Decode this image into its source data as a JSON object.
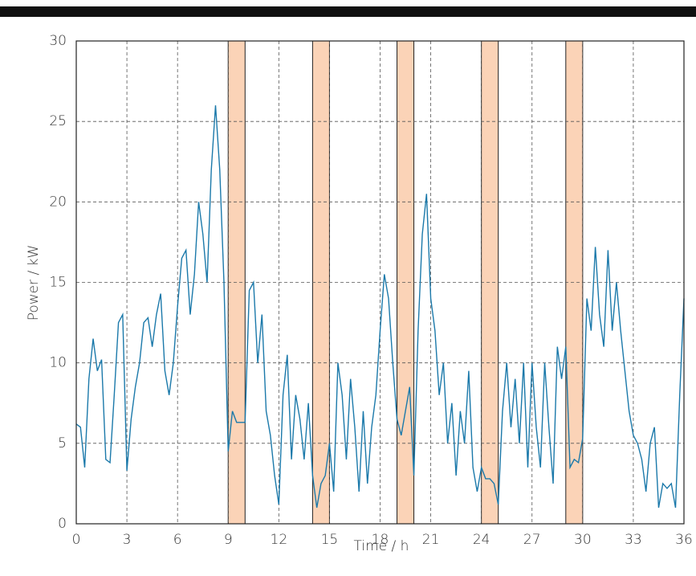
{
  "chart_data": {
    "type": "line",
    "xlabel": "Time  / h",
    "ylabel": "Power / kW",
    "xlim": [
      0,
      36
    ],
    "ylim": [
      0,
      30
    ],
    "xticks": [
      0,
      3,
      6,
      9,
      12,
      15,
      18,
      21,
      24,
      27,
      30,
      33,
      36
    ],
    "yticks": [
      0,
      5,
      10,
      15,
      20,
      25,
      30
    ],
    "grid": true,
    "shaded_regions": [
      [
        9,
        10
      ],
      [
        14,
        15
      ],
      [
        19,
        20
      ],
      [
        24,
        25
      ],
      [
        29,
        30
      ]
    ],
    "shaded_color": "#fbd3b7",
    "x": [
      0,
      0.25,
      0.5,
      0.75,
      1,
      1.25,
      1.5,
      1.75,
      2,
      2.25,
      2.5,
      2.75,
      3,
      3.25,
      3.5,
      3.75,
      4,
      4.25,
      4.5,
      4.75,
      5,
      5.25,
      5.5,
      5.75,
      6,
      6.25,
      6.5,
      6.75,
      7,
      7.25,
      7.5,
      7.75,
      8,
      8.25,
      8.5,
      8.75,
      9,
      9.25,
      9.5,
      9.75,
      10,
      10.25,
      10.5,
      10.75,
      11,
      11.25,
      11.5,
      11.75,
      12,
      12.25,
      12.5,
      12.75,
      13,
      13.25,
      13.5,
      13.75,
      14,
      14.25,
      14.5,
      14.75,
      15,
      15.25,
      15.5,
      15.75,
      16,
      16.25,
      16.5,
      16.75,
      17,
      17.25,
      17.5,
      17.75,
      18,
      18.25,
      18.5,
      18.75,
      19,
      19.25,
      19.5,
      19.75,
      20,
      20.25,
      20.5,
      20.75,
      21,
      21.25,
      21.5,
      21.75,
      22,
      22.25,
      22.5,
      22.75,
      23,
      23.25,
      23.5,
      23.75,
      24,
      24.25,
      24.5,
      24.75,
      25,
      25.25,
      25.5,
      25.75,
      26,
      26.25,
      26.5,
      26.75,
      27,
      27.25,
      27.5,
      27.75,
      28,
      28.25,
      28.5,
      28.75,
      29,
      29.25,
      29.5,
      29.75,
      30,
      30.25,
      30.5,
      30.75,
      31,
      31.25,
      31.5,
      31.75,
      32,
      32.25,
      32.5,
      32.75,
      33,
      33.25,
      33.5,
      33.75,
      34,
      34.25,
      34.5,
      34.75,
      35,
      35.25,
      35.5,
      35.75,
      36
    ],
    "series": [
      {
        "color": "#1b79aa",
        "values": [
          6.2,
          6.0,
          3.5,
          9,
          11.5,
          9.5,
          10.2,
          4,
          3.8,
          8,
          12.5,
          13,
          3.3,
          6.5,
          8.5,
          10,
          12.5,
          12.8,
          11,
          13,
          14.3,
          9.5,
          8,
          10,
          13.5,
          16.5,
          17,
          13,
          15.5,
          20,
          18,
          15,
          22,
          26,
          22,
          15,
          4.5,
          7,
          6.3,
          6.3,
          6.3,
          14.5,
          15,
          10,
          13,
          7,
          5.5,
          3,
          1.2,
          8,
          10.5,
          4,
          8,
          6.5,
          4,
          7.5,
          3,
          1.0,
          2.5,
          3,
          5,
          2,
          10,
          8,
          4,
          9,
          6,
          2,
          7,
          2.5,
          6,
          8,
          12,
          15.5,
          14,
          10,
          6.5,
          5.5,
          7,
          8.5,
          3,
          12,
          18,
          20.5,
          14,
          12,
          8,
          10,
          5,
          7.5,
          3,
          7,
          5,
          9.5,
          3.5,
          2,
          3.5,
          2.8,
          2.8,
          2.5,
          1.2,
          7,
          10,
          6,
          9,
          5,
          10,
          3.5,
          10,
          6,
          3.5,
          10,
          6,
          2.5,
          11,
          9,
          11,
          3.5,
          4,
          3.8,
          5.3,
          14,
          12,
          17.2,
          13,
          11,
          17,
          12,
          15,
          12,
          9.5,
          7,
          5.5,
          5,
          4,
          2,
          5,
          6,
          1,
          2.5,
          2.2,
          2.5,
          1,
          8,
          14
        ]
      }
    ]
  }
}
